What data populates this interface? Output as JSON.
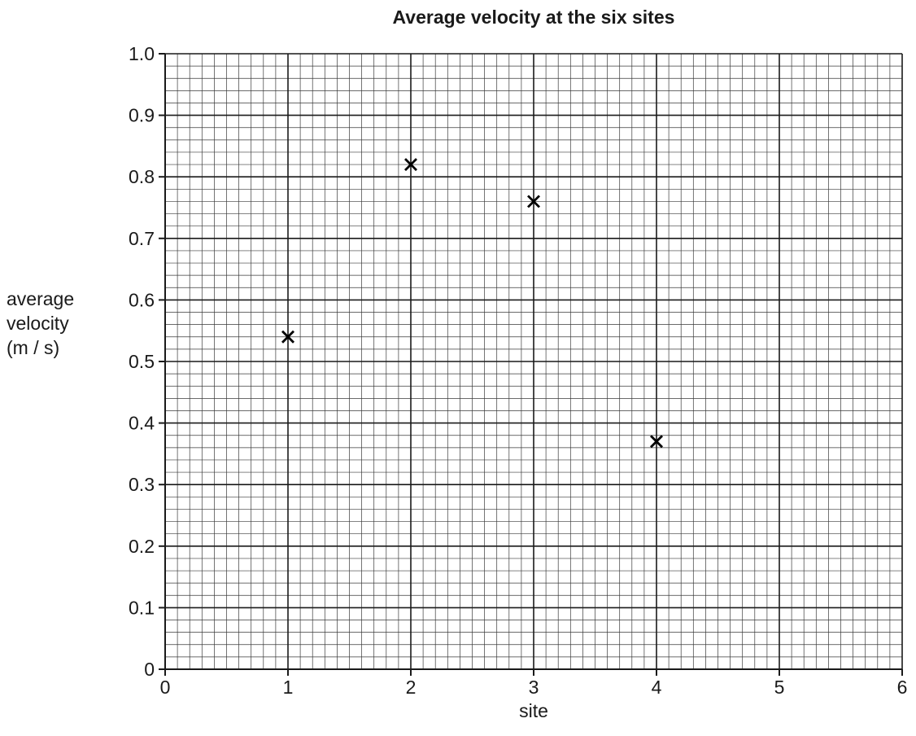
{
  "chart_data": {
    "type": "scatter",
    "title": "Average velocity at the six sites",
    "xlabel": "site",
    "ylabel": [
      "average",
      "velocity",
      "(m / s)"
    ],
    "xlim": [
      0,
      6
    ],
    "ylim": [
      0,
      1.0
    ],
    "x_ticks": [
      "0",
      "1",
      "2",
      "3",
      "4",
      "5",
      "6"
    ],
    "y_ticks": [
      "0",
      "0.1",
      "0.2",
      "0.3",
      "0.4",
      "0.5",
      "0.6",
      "0.7",
      "0.8",
      "0.9",
      "1.0"
    ],
    "grid": true,
    "marker": "x",
    "points": [
      {
        "x": 1,
        "y": 0.54
      },
      {
        "x": 2,
        "y": 0.82
      },
      {
        "x": 3,
        "y": 0.76
      },
      {
        "x": 4,
        "y": 0.37
      }
    ]
  }
}
